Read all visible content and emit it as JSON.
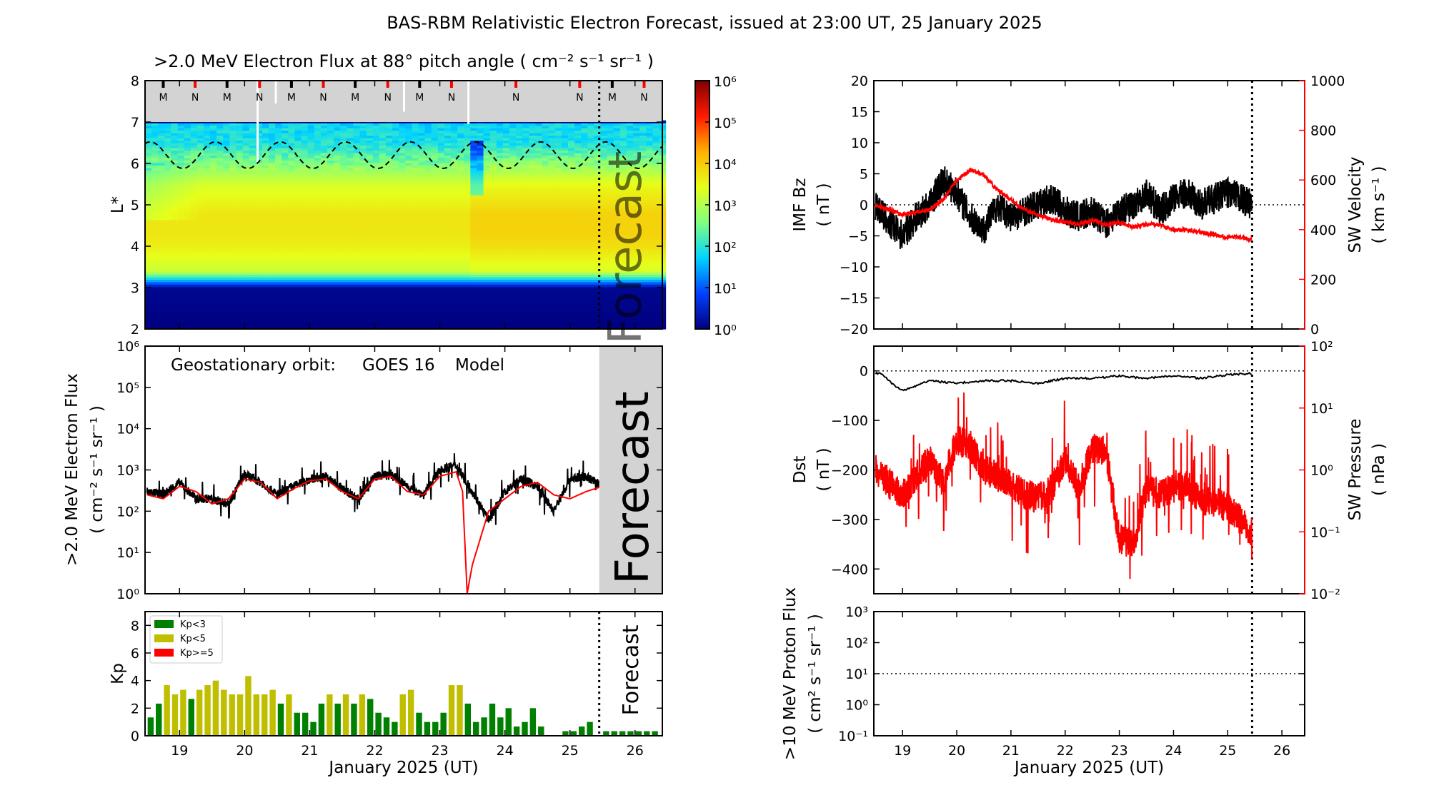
{
  "title": "BAS-RBM Relativistic Electron Forecast, issued at 23:00 UT, 25 January 2025",
  "forecast_label": "Forecast",
  "xlabel": "January 2025 (UT)",
  "xticks": [
    19,
    20,
    21,
    22,
    23,
    24,
    25,
    26
  ],
  "xtick_labels": [
    "19",
    "20",
    "21",
    "22",
    "23",
    "24",
    "25",
    "26"
  ],
  "xlim": [
    18.47,
    26.42
  ],
  "forecast_start": 25.45,
  "chart_data": [
    {
      "id": "spectrogram",
      "type": "heatmap",
      "title": ">2.0 MeV Electron Flux at 88° pitch angle ( cm⁻² s⁻¹ sr⁻¹ )",
      "ylabel": "L*",
      "ylim": [
        2,
        8
      ],
      "yticks": [
        2,
        3,
        4,
        5,
        6,
        7,
        8
      ],
      "ytick_labels": [
        "2",
        "3",
        "4",
        "5",
        "6",
        "7",
        "8"
      ],
      "no_data_above_L": 7,
      "profile_L": [
        2,
        3.0,
        3.15,
        3.4,
        4.0,
        4.3,
        4.8,
        5.5,
        6.0,
        6.5,
        7.0
      ],
      "profile_flux_before_23_4": [
        1,
        1.3,
        20,
        1500,
        4000,
        5000,
        5000,
        2000,
        400,
        80,
        60
      ],
      "profile_flux_after_23_4": [
        1,
        1.3,
        20,
        2000,
        6000,
        8000,
        8000,
        3000,
        500,
        80,
        60
      ],
      "dashed_boundary": {
        "mean_L": 6.2,
        "amplitude_L": 0.32,
        "period_days": 1
      },
      "colorbar": {
        "scale": "log",
        "range": [
          1,
          1000000
        ],
        "ticks": [
          "10⁰",
          "10¹",
          "10²",
          "10³",
          "10⁴",
          "10⁵",
          "10⁶"
        ]
      },
      "colormap": [
        "#00007f",
        "#0040ff",
        "#00d4ff",
        "#80ff80",
        "#e6ff1a",
        "#ffb000",
        "#ff1a00",
        "#800000"
      ],
      "markers": [
        {
          "label": "M",
          "x": 18.75,
          "color": "#000000"
        },
        {
          "label": "N",
          "x": 19.24,
          "color": "#ff0000"
        },
        {
          "label": "M",
          "x": 19.73,
          "color": "#000000"
        },
        {
          "label": "N",
          "x": 20.23,
          "color": "#ff0000"
        },
        {
          "label": "M",
          "x": 20.72,
          "color": "#000000"
        },
        {
          "label": "N",
          "x": 21.21,
          "color": "#ff0000"
        },
        {
          "label": "M",
          "x": 21.7,
          "color": "#000000"
        },
        {
          "label": "N",
          "x": 22.2,
          "color": "#ff0000"
        },
        {
          "label": "M",
          "x": 22.69,
          "color": "#000000"
        },
        {
          "label": "N",
          "x": 23.18,
          "color": "#ff0000"
        },
        {
          "label": "N",
          "x": 24.17,
          "color": "#ff0000"
        },
        {
          "label": "N",
          "x": 25.15,
          "color": "#ff0000"
        },
        {
          "label": "M",
          "x": 25.65,
          "color": "#000000"
        },
        {
          "label": "N",
          "x": 26.14,
          "color": "#ff0000"
        }
      ]
    },
    {
      "id": "geo-flux",
      "type": "line",
      "ylabel": [
        ">2.0 MeV Electron Flux",
        "( cm⁻² s⁻¹ sr⁻¹ )"
      ],
      "yscale": "log",
      "ylim": [
        1,
        1000000
      ],
      "yticks": [
        1,
        10,
        100,
        1000,
        10000,
        100000,
        1000000
      ],
      "ytick_labels": [
        "10⁰",
        "10¹",
        "10²",
        "10³",
        "10⁴",
        "10⁵",
        "10⁶"
      ],
      "legend": {
        "prefix": "Geostationary orbit:",
        "observed": "GOES 16",
        "model": "Model"
      },
      "series": [
        {
          "name": "GOES 16",
          "color": "#000000",
          "x": [
            18.5,
            18.75,
            19,
            19.25,
            19.5,
            19.75,
            20,
            20.25,
            20.5,
            20.75,
            21,
            21.25,
            21.5,
            21.75,
            22,
            22.25,
            22.5,
            22.75,
            23,
            23.25,
            23.5,
            23.75,
            24,
            24.25,
            24.5,
            24.75,
            25,
            25.25,
            25.45
          ],
          "y": [
            300,
            250,
            500,
            200,
            200,
            150,
            800,
            500,
            250,
            400,
            600,
            700,
            350,
            200,
            700,
            800,
            400,
            250,
            1000,
            1300,
            300,
            60,
            300,
            600,
            400,
            100,
            600,
            700,
            450
          ]
        },
        {
          "name": "Model",
          "color": "#ff0000",
          "x": [
            18.5,
            18.75,
            19,
            19.25,
            19.5,
            19.75,
            20,
            20.25,
            20.5,
            20.75,
            21,
            21.25,
            21.5,
            21.75,
            22,
            22.25,
            22.5,
            22.75,
            23,
            23.25,
            23.35,
            23.42,
            23.5,
            23.75,
            24,
            24.25,
            24.5,
            24.75,
            25,
            25.25,
            25.5,
            25.75,
            26,
            26.25,
            26.42
          ],
          "y": [
            250,
            200,
            400,
            300,
            150,
            200,
            600,
            500,
            200,
            350,
            550,
            600,
            300,
            200,
            600,
            700,
            300,
            250,
            700,
            900,
            300,
            1,
            5,
            100,
            200,
            400,
            500,
            250,
            200,
            300,
            400,
            120,
            150,
            400,
            200
          ]
        }
      ]
    },
    {
      "id": "kp",
      "type": "bar",
      "ylabel": "Kp",
      "ylim": [
        0,
        9
      ],
      "yticks": [
        0,
        2,
        4,
        6,
        8
      ],
      "ytick_labels": [
        "0",
        "2",
        "4",
        "6",
        "8"
      ],
      "bar_start": 18.5,
      "bar_step_days": 0.125,
      "values": [
        1.33,
        2.33,
        3.67,
        3.0,
        3.33,
        2.67,
        3.33,
        3.67,
        4.0,
        3.33,
        3.0,
        3.0,
        4.33,
        3.0,
        3.0,
        3.33,
        2.33,
        3.0,
        1.67,
        1.67,
        1.0,
        2.33,
        3.0,
        2.33,
        3.0,
        2.33,
        3.0,
        2.67,
        1.67,
        1.33,
        1.0,
        3.0,
        3.33,
        1.67,
        1.0,
        1.0,
        1.67,
        3.67,
        3.67,
        2.33,
        1.0,
        1.33,
        2.33,
        1.33,
        2.0,
        0.67,
        1.0,
        2.0,
        0.67,
        0,
        0,
        0.33,
        0.33,
        0.67,
        1.0,
        0,
        0.33,
        0.33,
        0.33,
        0.33,
        0.33,
        0.33,
        0.33
      ],
      "legend": [
        {
          "label": "Kp<3",
          "color": "#008000"
        },
        {
          "label": "Kp<5",
          "color": "#bfbf00"
        },
        {
          "label": "Kp>=5",
          "color": "#ff0000"
        }
      ]
    },
    {
      "id": "imf-sw",
      "type": "line",
      "ylabel": [
        "IMF Bz",
        "( nT )"
      ],
      "ylim": [
        -20,
        20
      ],
      "yticks": [
        -20,
        -15,
        -10,
        -5,
        0,
        5,
        10,
        15,
        20
      ],
      "ytick_labels": [
        "−20",
        "−15",
        "−10",
        "−5",
        "0",
        "5",
        "10",
        "15",
        "20"
      ],
      "ylabel_right": [
        "SW Velocity",
        "( km s⁻¹ )"
      ],
      "ylim_right": [
        0,
        1000
      ],
      "yticks_right": [
        0,
        200,
        400,
        600,
        800,
        1000
      ],
      "ytick_labels_right": [
        "0",
        "200",
        "400",
        "600",
        "800",
        "1000"
      ],
      "series": [
        {
          "name": "IMF Bz",
          "color": "#000000",
          "x": [
            18.5,
            18.75,
            19,
            19.25,
            19.5,
            19.75,
            20,
            20.25,
            20.5,
            20.75,
            21,
            21.25,
            21.5,
            21.75,
            22,
            22.25,
            22.5,
            22.75,
            23,
            23.25,
            23.5,
            23.75,
            24,
            24.25,
            24.5,
            24.75,
            25,
            25.25,
            25.45
          ],
          "y": [
            0,
            -3,
            -5,
            -2,
            0,
            4,
            2,
            -2,
            -4,
            0,
            -2,
            -1,
            0,
            1,
            -1,
            -2,
            -1,
            -3,
            -1,
            0,
            2,
            -1,
            1,
            2,
            0,
            1,
            2,
            1,
            0
          ]
        },
        {
          "name": "SW Velocity",
          "color": "#ff0000",
          "x": [
            18.5,
            18.75,
            19,
            19.25,
            19.5,
            19.75,
            20,
            20.25,
            20.5,
            20.75,
            21,
            21.25,
            21.5,
            21.75,
            22,
            22.25,
            22.5,
            22.75,
            23,
            23.25,
            23.5,
            23.75,
            24,
            24.25,
            24.5,
            24.75,
            25,
            25.25,
            25.45
          ],
          "y": [
            500,
            480,
            460,
            470,
            480,
            520,
            600,
            640,
            620,
            560,
            520,
            480,
            460,
            440,
            430,
            420,
            440,
            420,
            430,
            410,
            420,
            420,
            400,
            400,
            390,
            380,
            370,
            370,
            360
          ]
        }
      ]
    },
    {
      "id": "dst-pressure",
      "type": "line",
      "ylabel": [
        "Dst",
        "( nT )"
      ],
      "ylim": [
        -450,
        50
      ],
      "yticks": [
        -400,
        -300,
        -200,
        -100,
        0
      ],
      "ytick_labels": [
        "−400",
        "−300",
        "−200",
        "−100",
        "0"
      ],
      "ylabel_right": [
        "SW Pressure",
        "( nPa )"
      ],
      "yscale_right": "log",
      "ylim_right": [
        0.01,
        100
      ],
      "yticks_right": [
        0.01,
        0.1,
        1,
        10,
        100
      ],
      "ytick_labels_right": [
        "10⁻²",
        "10⁻¹",
        "10⁰",
        "10¹",
        "10²"
      ],
      "series": [
        {
          "name": "Dst",
          "color": "#000000",
          "x": [
            18.5,
            18.6,
            18.8,
            19,
            19.5,
            20,
            20.5,
            21,
            21.5,
            22,
            22.5,
            23,
            23.5,
            24,
            24.5,
            25,
            25.45
          ],
          "y": [
            -5,
            -5,
            -25,
            -40,
            -20,
            -25,
            -20,
            -20,
            -25,
            -15,
            -15,
            -10,
            -15,
            -10,
            -15,
            -8,
            -5
          ]
        },
        {
          "name": "SW Pressure",
          "color": "#ff0000",
          "x": [
            18.5,
            18.75,
            19,
            19.25,
            19.5,
            19.75,
            20,
            20.25,
            20.5,
            20.75,
            21,
            21.25,
            21.5,
            21.75,
            22,
            22.25,
            22.5,
            22.75,
            23,
            23.25,
            23.5,
            23.75,
            24,
            24.25,
            24.5,
            24.75,
            25,
            25.25,
            25.45
          ],
          "y": [
            1.0,
            0.6,
            0.4,
            0.8,
            1.5,
            0.6,
            3,
            2.5,
            1,
            0.8,
            0.6,
            0.4,
            0.35,
            0.5,
            1.5,
            0.5,
            2.2,
            2.0,
            0.08,
            0.06,
            0.5,
            0.4,
            0.5,
            0.6,
            0.3,
            0.3,
            0.25,
            0.15,
            0.1
          ]
        }
      ]
    },
    {
      "id": "proton",
      "type": "line",
      "ylabel": [
        ">10 MeV Proton Flux",
        "( cm² s⁻¹ sr⁻¹ )"
      ],
      "yscale": "log",
      "ylim": [
        0.1,
        1000
      ],
      "yticks": [
        0.1,
        1,
        10,
        100,
        1000
      ],
      "ytick_labels": [
        "10⁻¹",
        "10⁰",
        "10¹",
        "10²",
        "10³"
      ],
      "threshold": 10,
      "series": []
    }
  ]
}
